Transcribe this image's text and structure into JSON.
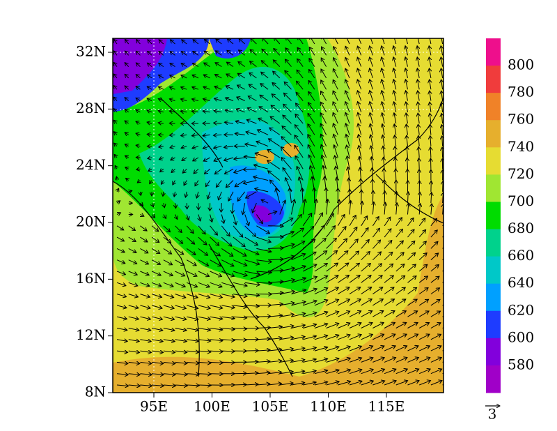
{
  "map": {
    "lat_labels": [
      "32N",
      "28N",
      "24N",
      "20N",
      "16N",
      "12N",
      "8N"
    ],
    "lon_labels": [
      "95E",
      "100E",
      "105E",
      "110E",
      "115E"
    ]
  },
  "colorbar": {
    "levels": [
      800,
      780,
      760,
      740,
      720,
      700,
      680,
      660,
      640,
      620,
      600,
      580
    ],
    "colors": [
      "#ee0f8c",
      "#f03c3c",
      "#f08228",
      "#e6af2d",
      "#e6dc32",
      "#a0e632",
      "#00dc00",
      "#00d28c",
      "#00c8c8",
      "#00a0ff",
      "#1e3cff",
      "#8200dc",
      "#a000c8"
    ]
  },
  "vector_reference": "3"
}
